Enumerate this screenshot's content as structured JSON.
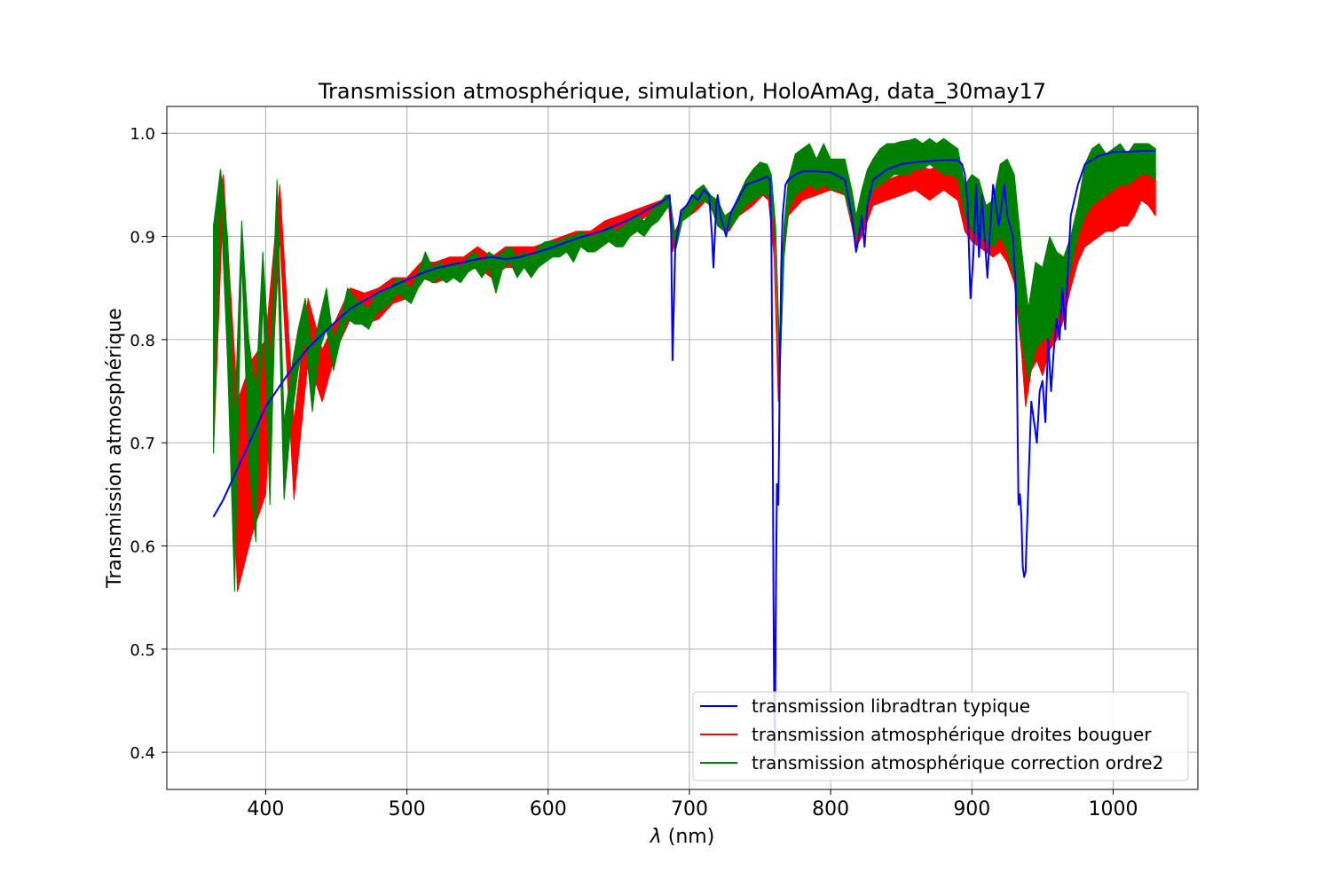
{
  "chart_data": {
    "type": "line",
    "title": "Transmission atmosphérique, simulation, HoloAmAg, data_30may17",
    "xlabel_symbol": "λ",
    "xlabel_unit": "(nm)",
    "ylabel": "Transmission atmosphérique",
    "xlim": [
      330,
      1060
    ],
    "ylim": [
      0.364,
      1.026
    ],
    "xticks": [
      "400",
      "500",
      "600",
      "700",
      "800",
      "900",
      "1000"
    ],
    "yticks": [
      "0.4",
      "0.5",
      "0.6",
      "0.7",
      "0.8",
      "0.9",
      "1.0"
    ],
    "grid": true,
    "legend_position": "lower-right",
    "series": [
      {
        "name": "transmission libradtran typique",
        "color": "#0000ff",
        "kind": "line",
        "x": [
          363,
          370,
          380,
          390,
          400,
          410,
          420,
          430,
          440,
          450,
          460,
          470,
          480,
          490,
          500,
          510,
          520,
          530,
          540,
          550,
          560,
          570,
          580,
          590,
          600,
          610,
          620,
          630,
          640,
          650,
          660,
          670,
          680,
          684,
          686,
          687,
          688,
          690,
          694,
          698,
          702,
          706,
          710,
          714,
          716,
          717,
          718,
          719,
          720,
          722,
          724,
          726,
          728,
          730,
          740,
          750,
          755,
          757,
          758,
          759,
          759.5,
          760,
          760.5,
          761,
          762,
          763,
          764,
          765,
          766,
          768,
          770,
          775,
          780,
          790,
          800,
          810,
          815,
          818,
          820,
          822,
          824,
          826,
          830,
          840,
          850,
          860,
          870,
          880,
          890,
          893,
          895,
          897,
          899,
          901,
          903,
          905,
          907,
          909,
          911,
          913,
          915,
          917,
          919,
          921,
          923,
          925,
          927,
          929,
          931,
          932,
          933,
          934,
          935,
          936,
          937,
          938,
          940,
          942,
          944,
          946,
          948,
          950,
          952,
          954,
          956,
          958,
          960,
          962,
          964,
          966,
          968,
          970,
          975,
          980,
          990,
          1000,
          1010,
          1020,
          1030
        ],
        "y": [
          0.628,
          0.645,
          0.675,
          0.705,
          0.735,
          0.755,
          0.775,
          0.792,
          0.805,
          0.818,
          0.83,
          0.838,
          0.846,
          0.852,
          0.858,
          0.864,
          0.869,
          0.872,
          0.875,
          0.878,
          0.88,
          0.878,
          0.88,
          0.884,
          0.888,
          0.893,
          0.898,
          0.902,
          0.906,
          0.912,
          0.918,
          0.926,
          0.933,
          0.937,
          0.94,
          0.91,
          0.78,
          0.89,
          0.925,
          0.93,
          0.94,
          0.935,
          0.945,
          0.94,
          0.9,
          0.87,
          0.9,
          0.93,
          0.94,
          0.92,
          0.91,
          0.9,
          0.915,
          0.925,
          0.95,
          0.955,
          0.958,
          0.955,
          0.9,
          0.7,
          0.55,
          0.45,
          0.395,
          0.52,
          0.66,
          0.64,
          0.77,
          0.87,
          0.92,
          0.95,
          0.955,
          0.96,
          0.963,
          0.963,
          0.962,
          0.955,
          0.92,
          0.885,
          0.9,
          0.92,
          0.89,
          0.93,
          0.955,
          0.965,
          0.97,
          0.972,
          0.973,
          0.974,
          0.974,
          0.97,
          0.96,
          0.93,
          0.84,
          0.88,
          0.95,
          0.88,
          0.94,
          0.9,
          0.86,
          0.91,
          0.95,
          0.93,
          0.91,
          0.93,
          0.95,
          0.92,
          0.91,
          0.9,
          0.85,
          0.75,
          0.64,
          0.65,
          0.63,
          0.58,
          0.57,
          0.575,
          0.66,
          0.74,
          0.72,
          0.7,
          0.75,
          0.76,
          0.72,
          0.8,
          0.75,
          0.79,
          0.82,
          0.8,
          0.85,
          0.81,
          0.87,
          0.92,
          0.95,
          0.97,
          0.978,
          0.982,
          0.982,
          0.983,
          0.983
        ]
      },
      {
        "name": "transmission atmosphérique droites bouguer",
        "color": "#ff0000",
        "kind": "band",
        "x": [
          363,
          370,
          380,
          390,
          400,
          410,
          420,
          430,
          440,
          450,
          460,
          470,
          480,
          490,
          500,
          510,
          520,
          530,
          540,
          550,
          560,
          570,
          580,
          590,
          600,
          610,
          620,
          630,
          640,
          650,
          660,
          670,
          680,
          685,
          688,
          695,
          705,
          712,
          718,
          722,
          728,
          735,
          745,
          752,
          756,
          760,
          763,
          766,
          770,
          780,
          790,
          800,
          810,
          815,
          818,
          822,
          830,
          840,
          850,
          860,
          870,
          880,
          890,
          895,
          900,
          905,
          910,
          915,
          920,
          925,
          930,
          935,
          938,
          942,
          946,
          950,
          955,
          960,
          965,
          970,
          975,
          980,
          985,
          990,
          995,
          1000,
          1005,
          1010,
          1015,
          1020,
          1025,
          1030
        ],
        "y_low": [
          0.69,
          0.94,
          0.556,
          0.61,
          0.65,
          0.9,
          0.645,
          0.78,
          0.74,
          0.79,
          0.82,
          0.815,
          0.82,
          0.835,
          0.84,
          0.86,
          0.855,
          0.86,
          0.865,
          0.87,
          0.86,
          0.87,
          0.87,
          0.875,
          0.88,
          0.885,
          0.89,
          0.89,
          0.9,
          0.905,
          0.91,
          0.92,
          0.925,
          0.935,
          0.885,
          0.915,
          0.925,
          0.935,
          0.92,
          0.91,
          0.905,
          0.92,
          0.93,
          0.94,
          0.935,
          0.88,
          0.74,
          0.87,
          0.92,
          0.935,
          0.94,
          0.945,
          0.94,
          0.91,
          0.89,
          0.9,
          0.93,
          0.935,
          0.94,
          0.945,
          0.935,
          0.945,
          0.935,
          0.905,
          0.895,
          0.89,
          0.885,
          0.88,
          0.885,
          0.875,
          0.855,
          0.79,
          0.735,
          0.77,
          0.78,
          0.765,
          0.79,
          0.8,
          0.82,
          0.85,
          0.875,
          0.89,
          0.895,
          0.9,
          0.905,
          0.905,
          0.91,
          0.91,
          0.92,
          0.935,
          0.93,
          0.92
        ],
        "y_high": [
          0.91,
          0.96,
          0.74,
          0.78,
          0.8,
          0.95,
          0.72,
          0.84,
          0.79,
          0.82,
          0.85,
          0.845,
          0.85,
          0.86,
          0.86,
          0.875,
          0.875,
          0.88,
          0.88,
          0.89,
          0.88,
          0.89,
          0.89,
          0.89,
          0.895,
          0.9,
          0.905,
          0.905,
          0.915,
          0.92,
          0.925,
          0.93,
          0.935,
          0.94,
          0.9,
          0.92,
          0.935,
          0.942,
          0.93,
          0.92,
          0.915,
          0.93,
          0.95,
          0.955,
          0.95,
          0.9,
          0.77,
          0.89,
          0.94,
          0.955,
          0.96,
          0.96,
          0.955,
          0.93,
          0.91,
          0.92,
          0.945,
          0.955,
          0.96,
          0.97,
          0.965,
          0.97,
          0.96,
          0.925,
          0.915,
          0.91,
          0.9,
          0.9,
          0.905,
          0.895,
          0.88,
          0.82,
          0.77,
          0.8,
          0.81,
          0.8,
          0.82,
          0.83,
          0.85,
          0.88,
          0.905,
          0.92,
          0.935,
          0.95,
          0.96,
          0.96,
          0.965,
          0.965,
          0.975,
          0.99,
          0.97,
          0.96
        ]
      },
      {
        "name": "transmission atmosphérique correction ordre2",
        "color": "#008000",
        "kind": "band",
        "x": [
          363,
          368,
          373,
          378,
          383,
          388,
          393,
          398,
          403,
          408,
          413,
          418,
          423,
          428,
          433,
          438,
          443,
          448,
          453,
          458,
          463,
          468,
          473,
          478,
          483,
          488,
          493,
          498,
          503,
          508,
          513,
          518,
          523,
          528,
          533,
          538,
          543,
          548,
          553,
          558,
          563,
          568,
          573,
          578,
          583,
          588,
          593,
          598,
          603,
          608,
          613,
          618,
          623,
          628,
          633,
          638,
          643,
          648,
          653,
          658,
          663,
          668,
          673,
          678,
          683,
          686,
          690,
          695,
          700,
          705,
          710,
          715,
          720,
          725,
          730,
          735,
          740,
          745,
          750,
          755,
          758,
          761,
          764,
          767,
          770,
          775,
          780,
          785,
          790,
          795,
          800,
          805,
          810,
          815,
          818,
          822,
          826,
          830,
          835,
          840,
          845,
          850,
          855,
          860,
          865,
          870,
          875,
          880,
          885,
          890,
          895,
          900,
          905,
          910,
          915,
          920,
          925,
          930,
          935,
          940,
          945,
          950,
          955,
          960,
          965,
          970,
          975,
          980,
          985,
          990,
          995,
          1000,
          1005,
          1010,
          1015,
          1020,
          1025,
          1030
        ],
        "y_low": [
          0.69,
          0.94,
          0.78,
          0.556,
          0.88,
          0.68,
          0.604,
          0.84,
          0.64,
          0.9,
          0.645,
          0.72,
          0.77,
          0.8,
          0.73,
          0.79,
          0.81,
          0.77,
          0.8,
          0.82,
          0.815,
          0.815,
          0.81,
          0.825,
          0.83,
          0.835,
          0.845,
          0.84,
          0.835,
          0.85,
          0.86,
          0.855,
          0.86,
          0.855,
          0.86,
          0.855,
          0.865,
          0.87,
          0.86,
          0.87,
          0.845,
          0.87,
          0.875,
          0.86,
          0.87,
          0.86,
          0.87,
          0.875,
          0.88,
          0.88,
          0.885,
          0.875,
          0.89,
          0.885,
          0.885,
          0.89,
          0.895,
          0.89,
          0.89,
          0.9,
          0.905,
          0.9,
          0.91,
          0.915,
          0.925,
          0.93,
          0.885,
          0.915,
          0.92,
          0.93,
          0.935,
          0.93,
          0.91,
          0.905,
          0.91,
          0.92,
          0.93,
          0.935,
          0.94,
          0.94,
          0.935,
          0.89,
          0.76,
          0.88,
          0.925,
          0.94,
          0.945,
          0.95,
          0.945,
          0.95,
          0.945,
          0.945,
          0.94,
          0.915,
          0.9,
          0.91,
          0.93,
          0.945,
          0.95,
          0.955,
          0.96,
          0.96,
          0.96,
          0.965,
          0.965,
          0.97,
          0.965,
          0.96,
          0.96,
          0.955,
          0.92,
          0.905,
          0.9,
          0.895,
          0.89,
          0.9,
          0.885,
          0.86,
          0.8,
          0.76,
          0.79,
          0.8,
          0.8,
          0.82,
          0.84,
          0.87,
          0.9,
          0.92,
          0.93,
          0.935,
          0.94,
          0.945,
          0.95,
          0.95,
          0.955,
          0.96,
          0.96,
          0.955
        ],
        "y_high": [
          0.91,
          0.965,
          0.9,
          0.72,
          0.915,
          0.8,
          0.75,
          0.885,
          0.77,
          0.955,
          0.72,
          0.77,
          0.81,
          0.84,
          0.79,
          0.82,
          0.85,
          0.8,
          0.82,
          0.85,
          0.84,
          0.835,
          0.83,
          0.845,
          0.845,
          0.85,
          0.86,
          0.855,
          0.85,
          0.865,
          0.885,
          0.87,
          0.875,
          0.87,
          0.875,
          0.87,
          0.88,
          0.885,
          0.875,
          0.885,
          0.88,
          0.885,
          0.89,
          0.88,
          0.885,
          0.88,
          0.89,
          0.895,
          0.895,
          0.895,
          0.9,
          0.9,
          0.905,
          0.9,
          0.9,
          0.905,
          0.91,
          0.905,
          0.91,
          0.915,
          0.92,
          0.915,
          0.925,
          0.93,
          0.94,
          0.94,
          0.9,
          0.925,
          0.935,
          0.945,
          0.95,
          0.94,
          0.935,
          0.92,
          0.925,
          0.94,
          0.955,
          0.965,
          0.972,
          0.97,
          0.96,
          0.91,
          0.78,
          0.91,
          0.955,
          0.98,
          0.985,
          0.99,
          0.975,
          0.99,
          0.975,
          0.975,
          0.975,
          0.945,
          0.92,
          0.945,
          0.965,
          0.975,
          0.985,
          0.99,
          0.99,
          0.992,
          0.993,
          0.995,
          0.99,
          0.995,
          0.99,
          0.995,
          0.99,
          0.985,
          0.95,
          0.96,
          0.955,
          0.93,
          0.935,
          0.97,
          0.975,
          0.96,
          0.89,
          0.83,
          0.875,
          0.87,
          0.9,
          0.885,
          0.88,
          0.9,
          0.93,
          0.97,
          0.985,
          0.99,
          0.98,
          0.985,
          0.99,
          0.98,
          0.99,
          0.99,
          0.99,
          0.985
        ]
      }
    ]
  }
}
